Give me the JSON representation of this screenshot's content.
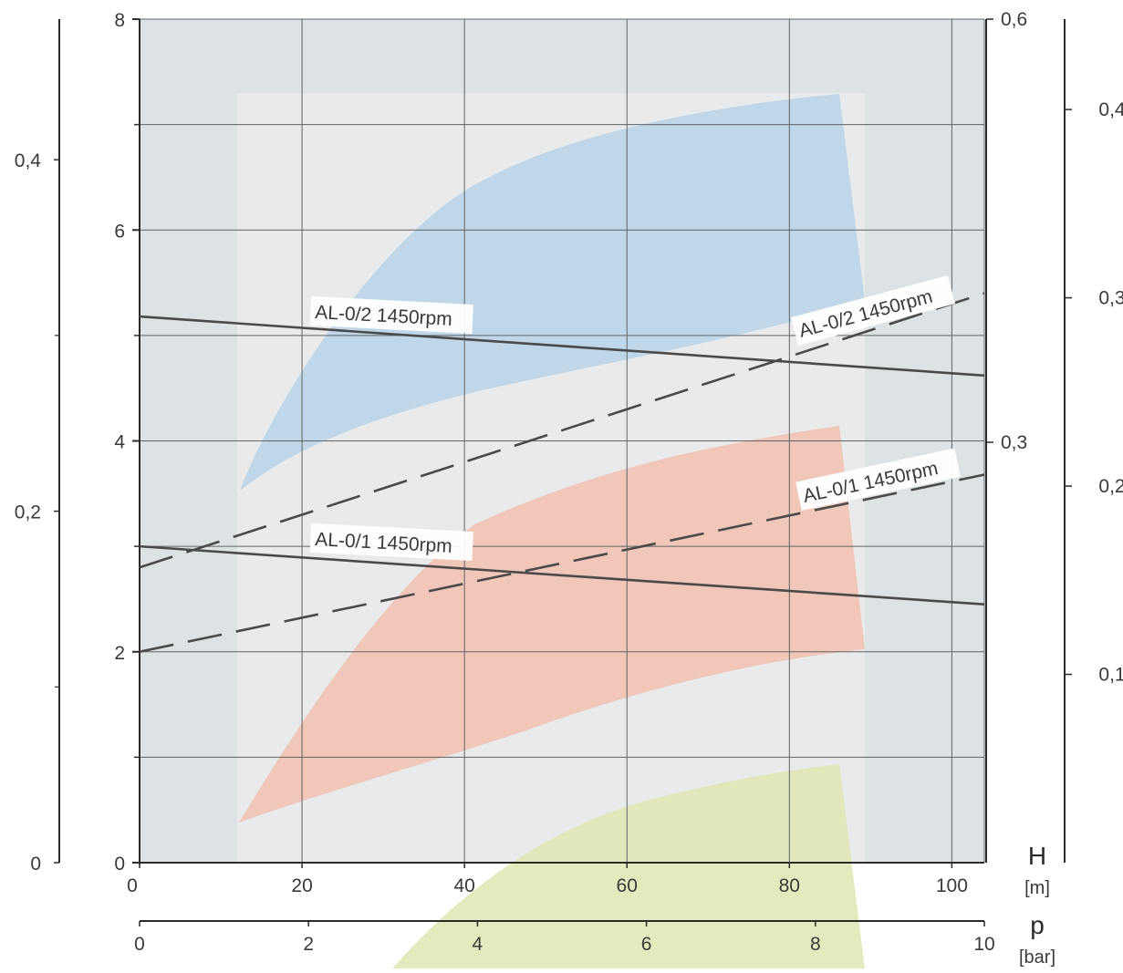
{
  "chart_data": {
    "type": "line",
    "x_axis": {
      "range": [
        0,
        104
      ],
      "ticks": [
        0,
        20,
        40,
        60,
        80,
        100
      ],
      "tick_labels": [
        "0",
        "20",
        "40",
        "60",
        "80",
        "100"
      ],
      "symbol": "H",
      "unit": "[m]"
    },
    "x2_axis": {
      "range": [
        0,
        10
      ],
      "ticks": [
        0,
        2,
        4,
        6,
        8,
        10
      ],
      "tick_labels": [
        "0",
        "2",
        "4",
        "6",
        "8",
        "10"
      ],
      "symbol": "p",
      "unit": "[bar]"
    },
    "y_left": {
      "range": [
        0,
        8
      ],
      "ticks": [
        0,
        2,
        4,
        6,
        8
      ],
      "tick_labels": [
        "0",
        "2",
        "4",
        "6",
        "8"
      ]
    },
    "y_far_left": {
      "range": [
        0,
        0.48
      ],
      "tick_labels": [
        "0",
        "0,2",
        "0,4"
      ],
      "tick_values": [
        0,
        0.2,
        0.4
      ]
    },
    "y_right": {
      "tick_labels": [
        "0,6",
        "0,3"
      ],
      "tick_values": [
        0.6,
        0.3
      ]
    },
    "y_far_right": {
      "range": [
        0,
        0.448
      ],
      "tick_labels": [
        "0,1",
        "0,2",
        "0,3",
        "0,4"
      ],
      "tick_values": [
        0.1,
        0.2,
        0.3,
        0.4
      ]
    },
    "grid": true,
    "series": [
      {
        "name": "AL-0/2 1450rpm",
        "style": "solid",
        "color": "#4a4a4a",
        "x": [
          0,
          104
        ],
        "y": [
          5.18,
          4.62
        ]
      },
      {
        "name": "AL-0/2 1450rpm",
        "style": "dashed",
        "color": "#4a4a4a",
        "x": [
          0,
          104
        ],
        "y": [
          2.8,
          5.4
        ]
      },
      {
        "name": "AL-0/1 1450rpm",
        "style": "solid",
        "color": "#4a4a4a",
        "x": [
          0,
          104
        ],
        "y": [
          3.0,
          2.45
        ]
      },
      {
        "name": "AL-0/1 1450rpm",
        "style": "dashed",
        "color": "#4a4a4a",
        "x": [
          0,
          104
        ],
        "y": [
          2.0,
          3.68
        ]
      }
    ],
    "regions": [
      {
        "color": "#b7d3e8"
      },
      {
        "color": "#f1c1b0"
      },
      {
        "color": "#dfe6b3"
      }
    ]
  },
  "colors": {
    "plot_background": "#dde2e5",
    "inner_panel": "#e8eaeb",
    "grid": "#5f6366",
    "axis": "#2b2b2b",
    "text": "#3a3a3a"
  }
}
